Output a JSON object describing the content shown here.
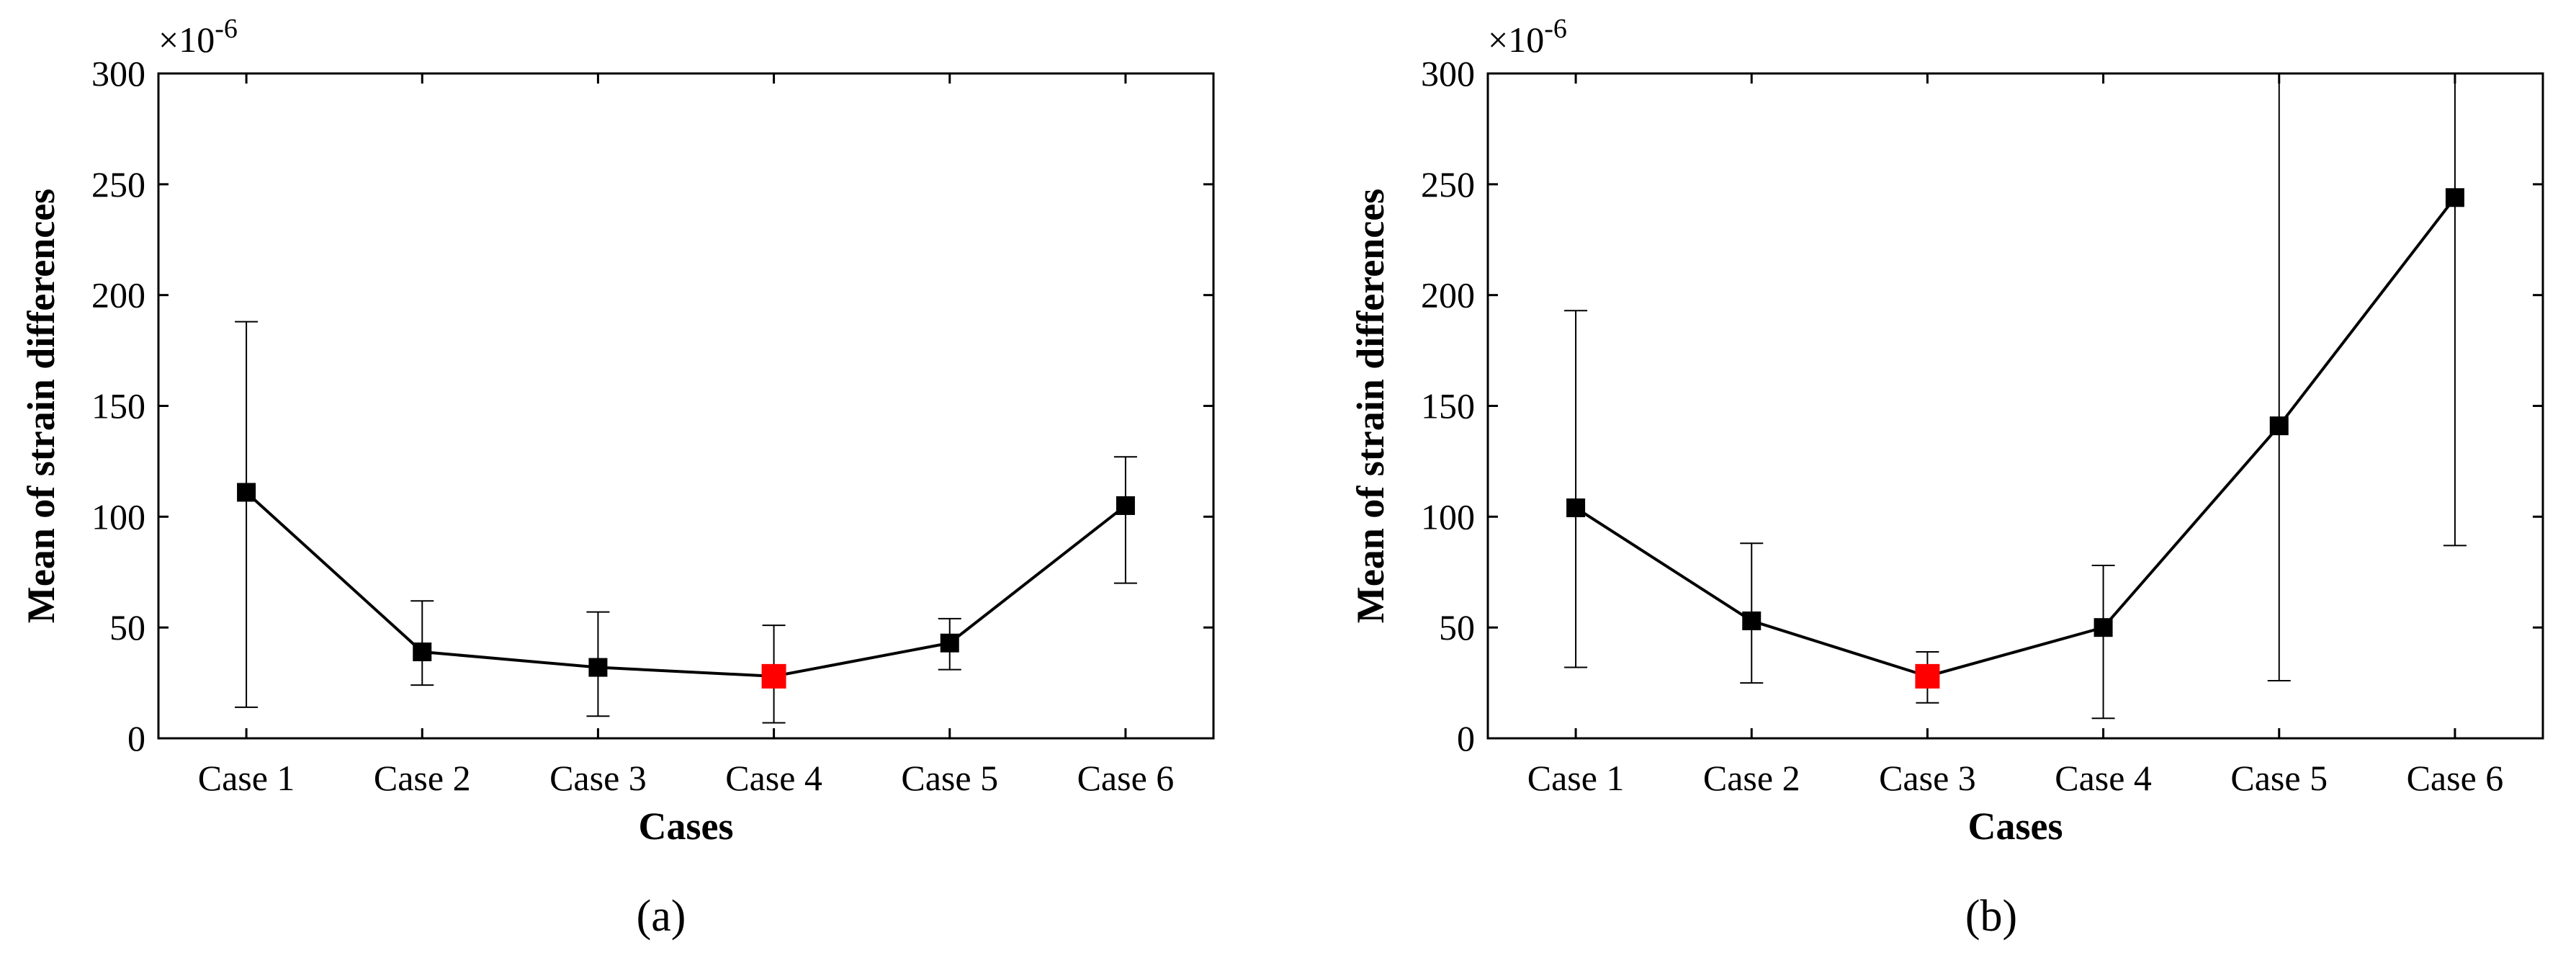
{
  "chart_data": [
    {
      "type": "line",
      "panel_label": "(a)",
      "categories": [
        "Case 1",
        "Case 2",
        "Case 3",
        "Case 4",
        "Case 5",
        "Case 6"
      ],
      "values": [
        111,
        39,
        32,
        28,
        43,
        105
      ],
      "error_low": [
        14,
        24,
        10,
        7,
        31,
        70
      ],
      "error_high": [
        188,
        62,
        57,
        51,
        54,
        127
      ],
      "highlight_index": 3,
      "xlabel": "Cases",
      "ylabel": "Mean of strain differences",
      "ylim": [
        0,
        300
      ],
      "yticks": [
        0,
        50,
        100,
        150,
        200,
        250,
        300
      ],
      "exponent_base": "×10",
      "exponent_power": "-6",
      "grid": false,
      "colors": {
        "line": "#000000",
        "marker": "#000000",
        "highlight": "#ff0000"
      }
    },
    {
      "type": "line",
      "panel_label": "(b)",
      "categories": [
        "Case 1",
        "Case 2",
        "Case 3",
        "Case 4",
        "Case 5",
        "Case 6"
      ],
      "values": [
        104,
        53,
        28,
        50,
        141,
        244
      ],
      "error_low": [
        32,
        25,
        16,
        9,
        26,
        87
      ],
      "error_high": [
        193,
        88,
        39,
        78,
        300,
        300
      ],
      "highlight_index": 2,
      "xlabel": "Cases",
      "ylabel": "Mean of strain differences",
      "ylim": [
        0,
        300
      ],
      "yticks": [
        0,
        50,
        100,
        150,
        200,
        250,
        300
      ],
      "exponent_base": "×10",
      "exponent_power": "-6",
      "grid": false,
      "colors": {
        "line": "#000000",
        "marker": "#000000",
        "highlight": "#ff0000"
      }
    }
  ]
}
